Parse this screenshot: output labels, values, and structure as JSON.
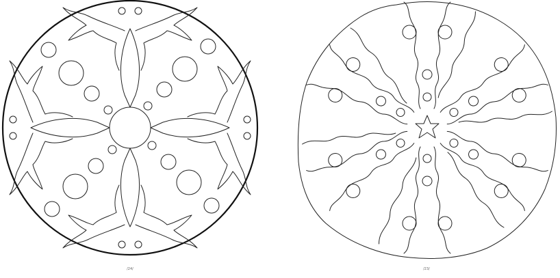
{
  "pages": [
    {
      "number_label": "/24/"
    },
    {
      "number_label": "/23/"
    }
  ],
  "colors": {
    "line": "#222222",
    "outer_ring": "#111111",
    "paper": "#ffffff",
    "page_number": "#666666"
  }
}
